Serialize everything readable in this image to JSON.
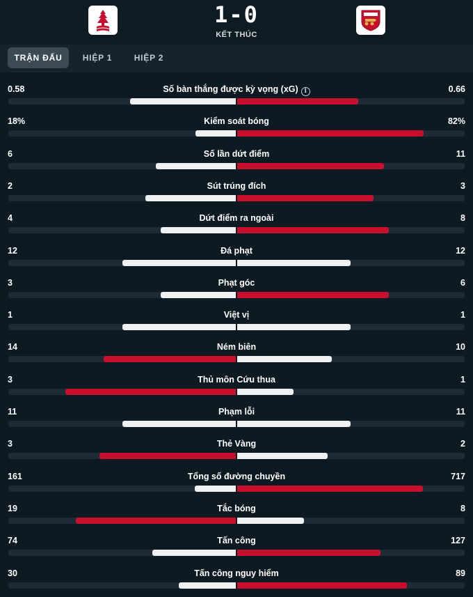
{
  "match": {
    "score": "1-0",
    "status": "KẾT THÚC",
    "home_logo_icon": "nottingham-forest-crest-icon",
    "away_logo_icon": "arsenal-crest-icon"
  },
  "tabs": [
    {
      "label": "TRẬN ĐẤU",
      "active": true
    },
    {
      "label": "HIỆP 1",
      "active": false
    },
    {
      "label": "HIỆP 2",
      "active": false
    }
  ],
  "colors": {
    "leader": "#c8102e",
    "trailer": "#eef0f2",
    "track": "#1c2b36",
    "background": "#0e1a22"
  },
  "stats": [
    {
      "label": "Số bàn thắng được kỳ vọng (xG)",
      "home": "0.58",
      "away": "0.66",
      "info": true
    },
    {
      "label": "Kiểm soát bóng",
      "home": "18%",
      "away": "82%"
    },
    {
      "label": "Số lần dứt điểm",
      "home": "6",
      "away": "11"
    },
    {
      "label": "Sút trúng đích",
      "home": "2",
      "away": "3"
    },
    {
      "label": "Dứt điểm ra ngoài",
      "home": "4",
      "away": "8"
    },
    {
      "label": "Đá phạt",
      "home": "12",
      "away": "12"
    },
    {
      "label": "Phạt góc",
      "home": "3",
      "away": "6"
    },
    {
      "label": "Việt vị",
      "home": "1",
      "away": "1"
    },
    {
      "label": "Ném biên",
      "home": "14",
      "away": "10"
    },
    {
      "label": "Thủ môn Cứu thua",
      "home": "3",
      "away": "1"
    },
    {
      "label": "Phạm lỗi",
      "home": "11",
      "away": "11"
    },
    {
      "label": "Thẻ Vàng",
      "home": "3",
      "away": "2"
    },
    {
      "label": "Tổng số đường chuyền",
      "home": "161",
      "away": "717"
    },
    {
      "label": "Tắc bóng",
      "home": "19",
      "away": "8"
    },
    {
      "label": "Tấn công",
      "home": "74",
      "away": "127"
    },
    {
      "label": "Tấn công nguy hiểm",
      "home": "30",
      "away": "89"
    }
  ]
}
